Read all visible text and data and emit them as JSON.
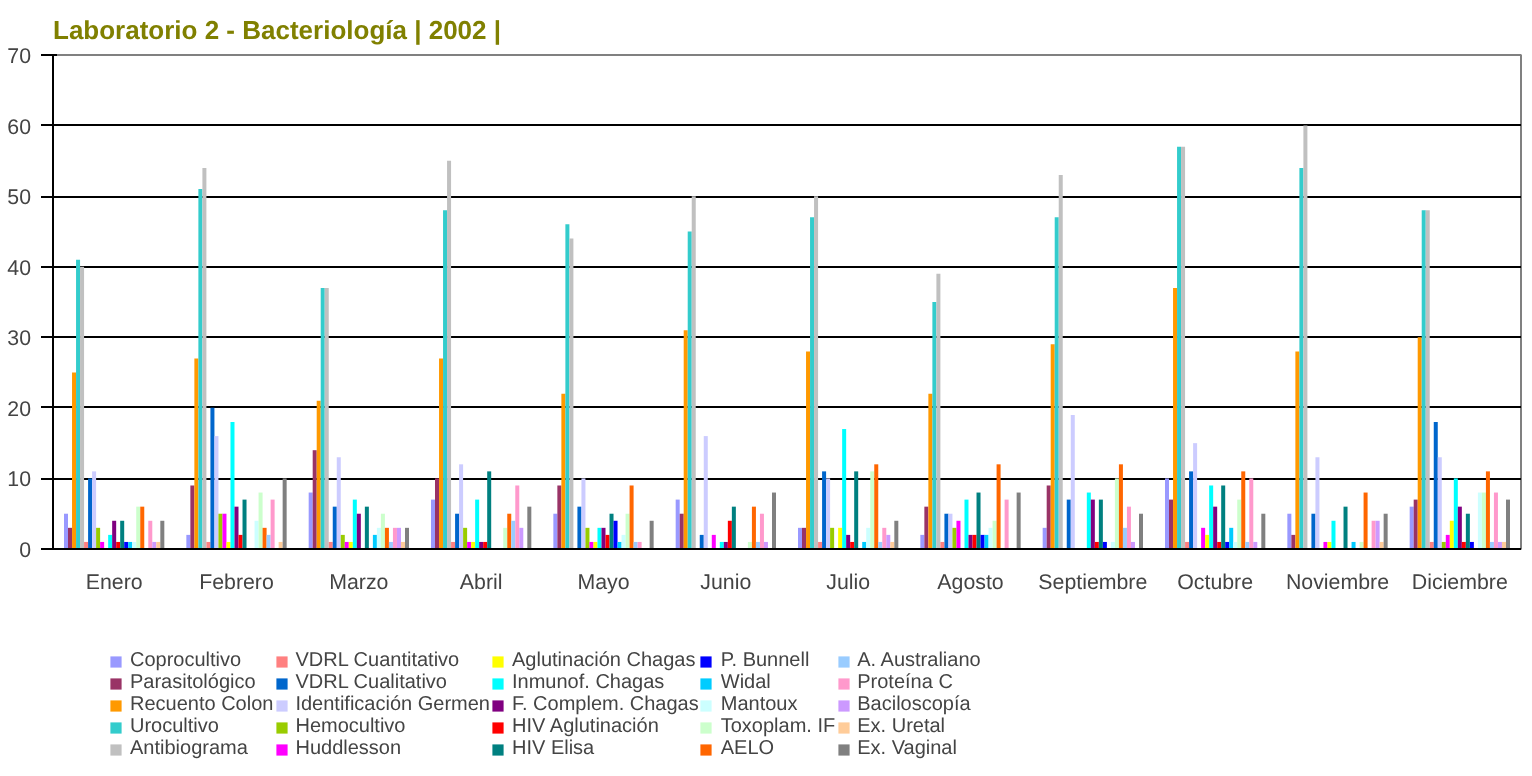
{
  "chart_data": {
    "type": "bar",
    "title": "Laboratorio 2 - Bacteriología | 2002 |",
    "categories": [
      "Enero",
      "Febrero",
      "Marzo",
      "Abril",
      "Mayo",
      "Junio",
      "Julio",
      "Agosto",
      "Septiembre",
      "Octubre",
      "Noviembre",
      "Diciembre"
    ],
    "ylim": [
      0,
      70
    ],
    "yticks": [
      0,
      10,
      20,
      30,
      40,
      50,
      60,
      70
    ],
    "grid": "y",
    "legend": "bottom",
    "series": [
      {
        "name": "Coprocultivo",
        "color": "#9999ff",
        "values": [
          5,
          2,
          8,
          7,
          5,
          7,
          3,
          2,
          3,
          10,
          5,
          6
        ]
      },
      {
        "name": "Parasitológico",
        "color": "#993366",
        "values": [
          3,
          9,
          14,
          10,
          9,
          5,
          3,
          6,
          9,
          7,
          2,
          7
        ]
      },
      {
        "name": "Recuento Colon",
        "color": "#ff9900",
        "values": [
          25,
          27,
          21,
          27,
          22,
          31,
          28,
          22,
          29,
          37,
          28,
          30
        ]
      },
      {
        "name": "Urocultivo",
        "color": "#33cccc",
        "values": [
          41,
          51,
          37,
          48,
          46,
          45,
          47,
          35,
          47,
          57,
          54,
          48
        ]
      },
      {
        "name": "Antibiograma",
        "color": "#c0c0c0",
        "values": [
          40,
          54,
          37,
          55,
          44,
          50,
          50,
          39,
          53,
          57,
          60,
          48
        ]
      },
      {
        "name": "VDRL Cuantitativo",
        "color": "#ff8080",
        "values": [
          1,
          1,
          1,
          1,
          0,
          0,
          1,
          1,
          0,
          1,
          0,
          1
        ]
      },
      {
        "name": "VDRL Cualitativo",
        "color": "#0066cc",
        "values": [
          10,
          20,
          6,
          5,
          6,
          2,
          11,
          5,
          7,
          11,
          5,
          18
        ]
      },
      {
        "name": "Identificación Germen",
        "color": "#ccccff",
        "values": [
          11,
          16,
          13,
          12,
          10,
          16,
          10,
          5,
          19,
          15,
          13,
          13
        ]
      },
      {
        "name": "Hemocultivo",
        "color": "#99cc00",
        "values": [
          3,
          5,
          2,
          3,
          3,
          0,
          3,
          3,
          0,
          0,
          0,
          1
        ]
      },
      {
        "name": "Huddlesson",
        "color": "#ff00ff",
        "values": [
          1,
          5,
          1,
          1,
          1,
          2,
          0,
          4,
          0,
          3,
          1,
          2
        ]
      },
      {
        "name": "Aglutinación Chagas",
        "color": "#ffff00",
        "values": [
          0,
          1,
          1,
          1,
          1,
          0,
          3,
          0,
          0,
          2,
          1,
          4
        ]
      },
      {
        "name": "Inmunof. Chagas",
        "color": "#00ffff",
        "values": [
          2,
          18,
          7,
          7,
          3,
          1,
          17,
          7,
          8,
          9,
          4,
          10
        ]
      },
      {
        "name": "F. Complem. Chagas",
        "color": "#800080",
        "values": [
          4,
          6,
          5,
          1,
          3,
          1,
          2,
          2,
          7,
          6,
          0,
          6
        ]
      },
      {
        "name": "HIV Aglutinación",
        "color": "#ff0000",
        "values": [
          1,
          2,
          0,
          1,
          2,
          4,
          1,
          2,
          1,
          1,
          0,
          1
        ]
      },
      {
        "name": "HIV Elisa",
        "color": "#008080",
        "values": [
          4,
          7,
          6,
          11,
          5,
          6,
          11,
          8,
          7,
          9,
          6,
          5
        ]
      },
      {
        "name": "P. Bunnell",
        "color": "#0000ff",
        "values": [
          1,
          0,
          0,
          0,
          4,
          0,
          0,
          2,
          1,
          1,
          0,
          1
        ]
      },
      {
        "name": "Widal",
        "color": "#00ccff",
        "values": [
          1,
          0,
          2,
          0,
          1,
          0,
          1,
          2,
          0,
          3,
          1,
          0
        ]
      },
      {
        "name": "Mantoux",
        "color": "#ccffff",
        "values": [
          1,
          4,
          3,
          0,
          2,
          0,
          3,
          3,
          1,
          1,
          0,
          8
        ]
      },
      {
        "name": "Toxoplam. IF",
        "color": "#ccffcc",
        "values": [
          6,
          8,
          5,
          3,
          5,
          1,
          11,
          4,
          10,
          7,
          1,
          8
        ]
      },
      {
        "name": "AELO",
        "color": "#ff6600",
        "values": [
          6,
          3,
          3,
          5,
          9,
          6,
          12,
          12,
          12,
          11,
          8,
          11
        ]
      },
      {
        "name": "A. Australiano",
        "color": "#99ccff",
        "values": [
          0,
          2,
          1,
          4,
          1,
          1,
          1,
          0,
          3,
          1,
          0,
          1
        ]
      },
      {
        "name": "Proteína C",
        "color": "#ff99cc",
        "values": [
          4,
          7,
          3,
          9,
          1,
          5,
          3,
          7,
          6,
          10,
          4,
          8
        ]
      },
      {
        "name": "Baciloscopía",
        "color": "#cc99ff",
        "values": [
          1,
          0,
          3,
          3,
          0,
          1,
          2,
          0,
          1,
          1,
          4,
          1
        ]
      },
      {
        "name": "Ex. Uretal",
        "color": "#ffcc99",
        "values": [
          1,
          1,
          1,
          0,
          0,
          0,
          1,
          0,
          0,
          0,
          1,
          1
        ]
      },
      {
        "name": "Ex. Vaginal",
        "color": "#808080",
        "values": [
          4,
          10,
          3,
          6,
          4,
          8,
          4,
          8,
          5,
          5,
          5,
          7
        ]
      }
    ]
  }
}
